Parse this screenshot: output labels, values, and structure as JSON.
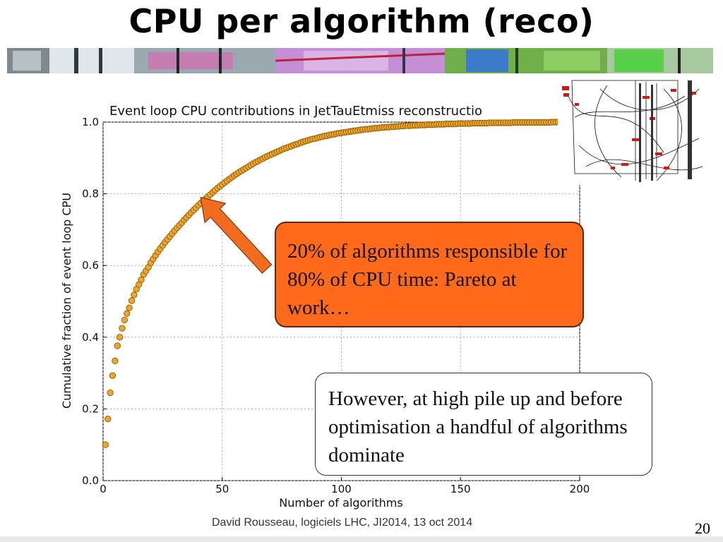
{
  "slide": {
    "title": "CPU per algorithm (reco)",
    "footer": "David Rousseau, logiciels LHC, JI2014, 13 oct 2014",
    "page_number": "20"
  },
  "callouts": {
    "pareto": "20% of algorithms responsible for 80% of CPU time: Pareto at work…",
    "pileup": "However, at high pile up and before optimisation a handful of algorithms dominate"
  },
  "annotation_arrow": {
    "target": [
      41,
      0.79
    ],
    "color": "#f36c1f"
  },
  "colors": {
    "marker_fill": "#f0a52c",
    "marker_edge": "#8a5a00",
    "callout_fill": "#ff6a1a"
  },
  "chart_data": {
    "type": "scatter",
    "title": "Event loop CPU contributions in JetTauEtmiss reconstructio",
    "xlabel": "Number of algorithms",
    "ylabel": "Cumulative fraction of event loop CPU",
    "xlim": [
      0,
      200
    ],
    "ylim": [
      0,
      1
    ],
    "xticks": [
      "0",
      "50",
      "100",
      "150",
      "200"
    ],
    "yticks": [
      "0.0",
      "0.2",
      "0.4",
      "0.6",
      "0.8",
      "1.0"
    ],
    "grid": true,
    "x": [
      1,
      2,
      3,
      4,
      5,
      6,
      7,
      8,
      9,
      10,
      11,
      12,
      13,
      14,
      15,
      16,
      17,
      18,
      19,
      20,
      21,
      22,
      23,
      24,
      25,
      26,
      27,
      28,
      29,
      30,
      31,
      32,
      33,
      34,
      35,
      36,
      37,
      38,
      39,
      40,
      41,
      42,
      43,
      44,
      45,
      46,
      47,
      48,
      49,
      50,
      51,
      52,
      53,
      54,
      55,
      56,
      57,
      58,
      59,
      60,
      61,
      62,
      63,
      64,
      65,
      66,
      67,
      68,
      69,
      70,
      71,
      72,
      73,
      74,
      75,
      76,
      77,
      78,
      79,
      80,
      81,
      82,
      83,
      84,
      85,
      86,
      87,
      88,
      89,
      90,
      91,
      92,
      93,
      94,
      95,
      96,
      97,
      98,
      99,
      100,
      101,
      102,
      103,
      104,
      105,
      106,
      107,
      108,
      109,
      110,
      111,
      112,
      113,
      114,
      115,
      116,
      117,
      118,
      119,
      120,
      121,
      122,
      123,
      124,
      125,
      126,
      127,
      128,
      129,
      130,
      131,
      132,
      133,
      134,
      135,
      136,
      137,
      138,
      139,
      140,
      141,
      142,
      143,
      144,
      145,
      146,
      147,
      148,
      149,
      150,
      151,
      152,
      153,
      154,
      155,
      156,
      157,
      158,
      159,
      160,
      161,
      162,
      163,
      164,
      165,
      166,
      167,
      168,
      169,
      170,
      171,
      172,
      173,
      174,
      175,
      176,
      177,
      178,
      179,
      180,
      181,
      182,
      183,
      184,
      185,
      186,
      187,
      188,
      189,
      190,
      191,
      192
    ],
    "y": [
      0.1,
      0.172,
      0.245,
      0.293,
      0.334,
      0.376,
      0.4,
      0.425,
      0.448,
      0.466,
      0.482,
      0.502,
      0.518,
      0.534,
      0.547,
      0.56,
      0.575,
      0.585,
      0.595,
      0.608,
      0.618,
      0.628,
      0.638,
      0.647,
      0.656,
      0.665,
      0.673,
      0.681,
      0.689,
      0.697,
      0.705,
      0.712,
      0.719,
      0.727,
      0.734,
      0.741,
      0.748,
      0.755,
      0.761,
      0.768,
      0.774,
      0.78,
      0.786,
      0.792,
      0.798,
      0.804,
      0.81,
      0.816,
      0.821,
      0.826,
      0.831,
      0.836,
      0.841,
      0.846,
      0.851,
      0.855,
      0.86,
      0.864,
      0.868,
      0.872,
      0.876,
      0.88,
      0.884,
      0.888,
      0.891,
      0.895,
      0.898,
      0.902,
      0.905,
      0.908,
      0.911,
      0.914,
      0.917,
      0.92,
      0.923,
      0.926,
      0.928,
      0.931,
      0.933,
      0.936,
      0.938,
      0.94,
      0.943,
      0.945,
      0.947,
      0.949,
      0.951,
      0.953,
      0.954,
      0.956,
      0.958,
      0.959,
      0.961,
      0.962,
      0.964,
      0.965,
      0.966,
      0.968,
      0.969,
      0.97,
      0.971,
      0.972,
      0.973,
      0.974,
      0.975,
      0.976,
      0.977,
      0.978,
      0.979,
      0.98,
      0.98,
      0.981,
      0.982,
      0.983,
      0.983,
      0.984,
      0.985,
      0.985,
      0.986,
      0.986,
      0.987,
      0.987,
      0.988,
      0.988,
      0.989,
      0.989,
      0.99,
      0.99,
      0.99,
      0.991,
      0.991,
      0.991,
      0.992,
      0.992,
      0.992,
      0.993,
      0.993,
      0.993,
      0.993,
      0.994,
      0.994,
      0.994,
      0.994,
      0.995,
      0.995,
      0.995,
      0.995,
      0.995,
      0.996,
      0.996,
      0.996,
      0.996,
      0.996,
      0.996,
      0.997,
      0.997,
      0.997,
      0.997,
      0.997,
      0.997,
      0.997,
      0.998,
      0.998,
      0.998,
      0.998,
      0.998,
      0.998,
      0.998,
      0.998,
      0.998,
      0.998,
      0.999,
      0.999,
      0.999,
      0.999,
      0.999,
      0.999,
      0.999,
      0.999,
      0.999,
      0.999,
      0.999,
      0.999,
      0.999,
      0.999,
      0.999,
      0.999,
      1.0,
      1.0,
      1.0,
      1.0,
      1.0
    ]
  }
}
